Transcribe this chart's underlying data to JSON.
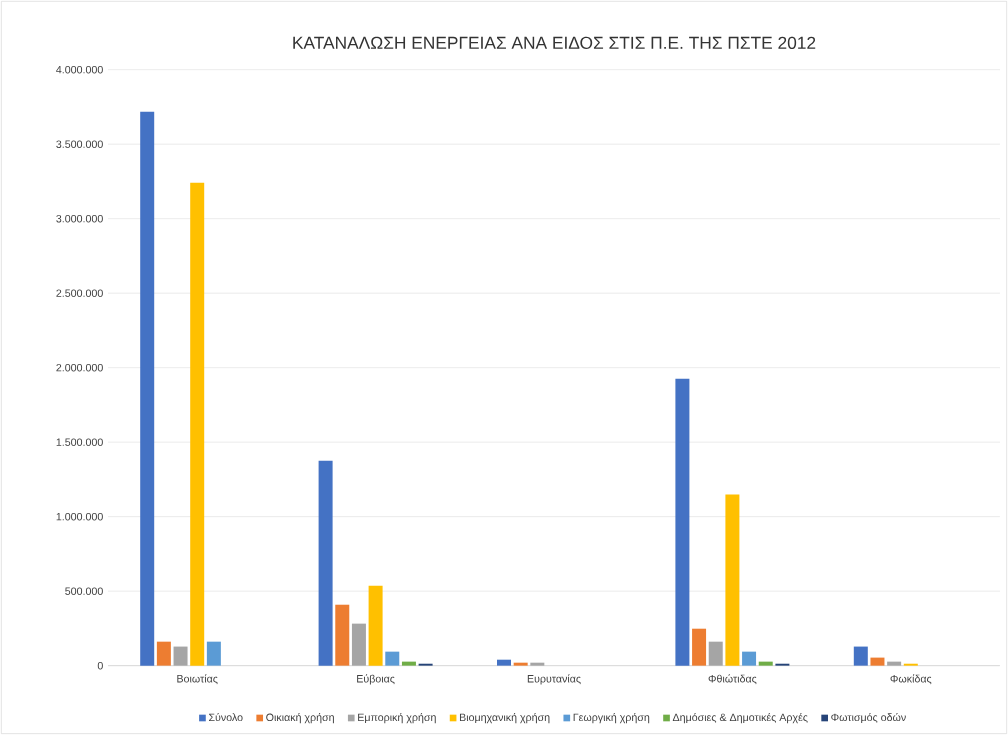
{
  "chart_data": {
    "type": "bar",
    "title": "ΚΑΤΑΝΑΛΩΣΗ ΕΝΕΡΓΕΙΑΣ ΑΝΑ ΕΙΔΟΣ ΣΤΙΣ Π.Ε. ΤΗΣ ΠΣΤΕ 2012",
    "categories": [
      "Βοιωτίας",
      "Εύβοιας",
      "Ευρυτανίας",
      "Φθιώτιδας",
      "Φωκίδας"
    ],
    "series": [
      {
        "name": "Σύνολο",
        "color": "#4472c4",
        "values": [
          3718000,
          1376000,
          40000,
          1926000,
          128000
        ]
      },
      {
        "name": "Οικιακή χρήση",
        "color": "#ed7d31",
        "values": [
          161000,
          409000,
          20000,
          248000,
          54000
        ]
      },
      {
        "name": "Εμπορική χρήση",
        "color": "#a5a5a5",
        "values": [
          128000,
          282000,
          20000,
          161000,
          27000
        ]
      },
      {
        "name": "Βιομηχανική χρήση",
        "color": "#ffc000",
        "values": [
          3241000,
          537000,
          null,
          1148000,
          13000
        ]
      },
      {
        "name": "Γεωργική χρήση",
        "color": "#5b9bd5",
        "values": [
          161000,
          94000,
          null,
          94000,
          null
        ]
      },
      {
        "name": "Δημόσιες & Δημοτικές Αρχές",
        "color": "#70ad47",
        "values": [
          null,
          27000,
          null,
          27000,
          null
        ]
      },
      {
        "name": "Φωτισμός οδών",
        "color": "#264478",
        "values": [
          null,
          13000,
          null,
          13000,
          null
        ]
      }
    ],
    "ylim": [
      0,
      4000000
    ],
    "yticks": [
      {
        "value": 0,
        "label": "0"
      },
      {
        "value": 500000,
        "label": "500.000"
      },
      {
        "value": 1000000,
        "label": "1.000.000"
      },
      {
        "value": 1500000,
        "label": "1.500.000"
      },
      {
        "value": 2000000,
        "label": "2.000.000"
      },
      {
        "value": 2500000,
        "label": "2.500.000"
      },
      {
        "value": 3000000,
        "label": "3.000.000"
      },
      {
        "value": 3500000,
        "label": "3.500.000"
      },
      {
        "value": 4000000,
        "label": "4.000.000"
      }
    ],
    "grid": "y",
    "legend": "bottom"
  }
}
